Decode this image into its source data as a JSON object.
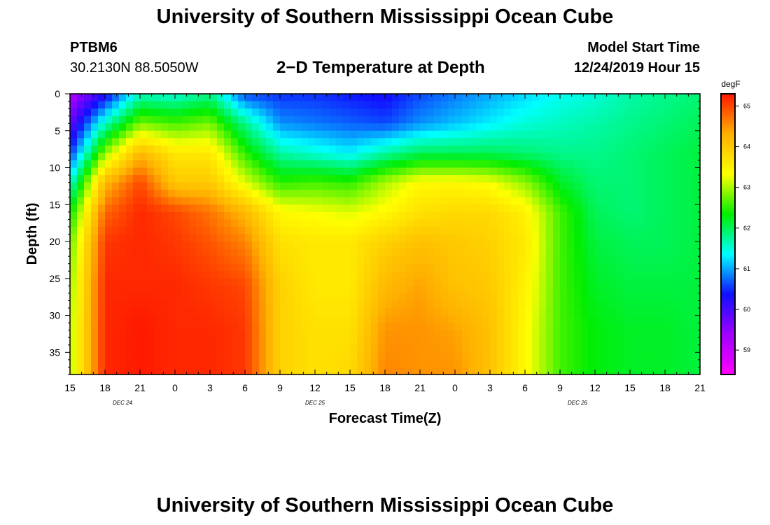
{
  "header": {
    "title": "University of Southern Mississippi Ocean Cube",
    "station_id": "PTBM6",
    "station_coords": "30.2130N 88.5050W",
    "chart_title": "2−D Temperature at Depth",
    "model_start_label": "Model Start Time",
    "model_start_value": "12/24/2019 Hour 15"
  },
  "footer": {
    "title": "University of Southern Mississippi Ocean Cube"
  },
  "chart_data": {
    "type": "heatmap",
    "xlabel": "Forecast Time(Z)",
    "ylabel": "Depth (ft)",
    "x_ticks": [
      "15",
      "18",
      "21",
      "0",
      "3",
      "6",
      "9",
      "12",
      "15",
      "18",
      "21",
      "0",
      "3",
      "6",
      "9",
      "12",
      "15",
      "18",
      "21"
    ],
    "x_range_hours": [
      0,
      54
    ],
    "date_labels": [
      {
        "text": "DEC 24",
        "hour": 4.5
      },
      {
        "text": "DEC 25",
        "hour": 21
      },
      {
        "text": "DEC 26",
        "hour": 43.5
      }
    ],
    "y_ticks": [
      0,
      5,
      10,
      15,
      20,
      25,
      30,
      35
    ],
    "y_range": [
      0,
      38
    ],
    "y_inverted": true,
    "colorbar": {
      "unit": "degF",
      "ticks": [
        59,
        60,
        61,
        62,
        63,
        64,
        65
      ],
      "range": [
        58.4,
        65.3
      ],
      "colors": [
        "#ff00ff",
        "#a000ff",
        "#1010ff",
        "#00ffff",
        "#00ee00",
        "#ffff00",
        "#ffb000",
        "#ff1800"
      ]
    },
    "grid_hours": [
      0,
      3,
      6,
      9,
      12,
      15,
      18,
      21,
      24,
      27,
      30,
      33,
      36,
      39,
      42,
      45,
      48,
      51,
      54
    ],
    "grid_depths": [
      0,
      4,
      8,
      12,
      16,
      20,
      26,
      32,
      38
    ],
    "temperature_degF": [
      [
        59.2,
        60.2,
        61.6,
        61.5,
        61.8,
        60.6,
        60.5,
        60.5,
        60.4,
        60.3,
        60.6,
        60.8,
        61.0,
        61.2,
        61.4,
        61.5,
        61.7,
        61.8,
        61.9
      ],
      [
        59.8,
        61.6,
        62.8,
        62.6,
        62.8,
        61.8,
        60.9,
        60.8,
        60.7,
        60.6,
        60.9,
        61.1,
        61.3,
        61.5,
        61.6,
        61.7,
        61.8,
        61.9,
        62.0
      ],
      [
        60.5,
        62.9,
        64.2,
        63.6,
        63.6,
        62.5,
        61.7,
        61.5,
        61.3,
        61.7,
        62.0,
        62.0,
        62.0,
        61.9,
        61.8,
        61.8,
        61.9,
        62.0,
        62.1
      ],
      [
        61.5,
        64.2,
        65.0,
        64.0,
        64.0,
        63.2,
        62.5,
        62.6,
        62.5,
        63.0,
        63.4,
        63.4,
        63.3,
        62.9,
        62.2,
        61.9,
        61.9,
        62.0,
        62.1
      ],
      [
        62.3,
        64.8,
        65.2,
        65.0,
        64.7,
        64.2,
        63.4,
        63.3,
        63.2,
        63.4,
        63.7,
        63.8,
        63.8,
        63.5,
        62.6,
        62.0,
        61.9,
        62.0,
        62.1
      ],
      [
        62.7,
        65.1,
        65.2,
        65.1,
        64.9,
        64.6,
        63.7,
        63.6,
        63.6,
        63.9,
        64.1,
        64.0,
        63.9,
        63.6,
        62.6,
        62.1,
        62.0,
        62.0,
        62.1
      ],
      [
        62.9,
        65.2,
        65.2,
        65.2,
        65.1,
        65.0,
        63.9,
        63.6,
        63.6,
        64.2,
        64.4,
        64.1,
        64.0,
        63.5,
        62.6,
        62.2,
        62.1,
        62.1,
        62.1
      ],
      [
        63.0,
        65.2,
        65.3,
        65.2,
        65.2,
        65.1,
        63.9,
        63.7,
        63.7,
        64.5,
        64.5,
        64.4,
        64.1,
        63.4,
        62.6,
        62.3,
        62.2,
        62.2,
        62.1
      ],
      [
        63.0,
        65.2,
        65.3,
        65.2,
        65.2,
        65.1,
        63.9,
        63.7,
        63.8,
        64.6,
        64.5,
        64.5,
        64.1,
        63.4,
        62.6,
        62.3,
        62.2,
        62.2,
        62.1
      ]
    ]
  }
}
